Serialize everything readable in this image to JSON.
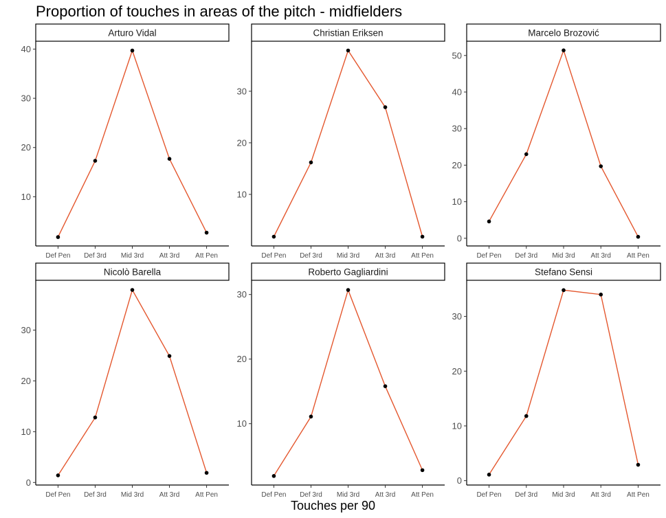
{
  "title": "Proportion of touches in areas of the pitch - midfielders",
  "xlabel": "Touches per 90",
  "colors": {
    "line": "#e4572e",
    "point": "#000000",
    "axis": "#000000",
    "strip_fill": "#ffffff"
  },
  "chart_data": [
    {
      "type": "line",
      "title": "Arturo Vidal",
      "categories": [
        "Def Pen",
        "Def 3rd",
        "Mid 3rd",
        "Att 3rd",
        "Att Pen"
      ],
      "values": [
        1.8,
        17.3,
        39.7,
        17.7,
        2.7
      ],
      "ylim": [
        0,
        41.6
      ],
      "yticks": [
        10,
        20,
        30,
        40
      ],
      "grid": false
    },
    {
      "type": "line",
      "title": "Christian Eriksen",
      "categories": [
        "Def Pen",
        "Def 3rd",
        "Mid 3rd",
        "Att 3rd",
        "Att Pen"
      ],
      "values": [
        1.8,
        16.2,
        37.9,
        26.9,
        1.8
      ],
      "ylim": [
        0,
        39.7
      ],
      "yticks": [
        10,
        20,
        30
      ],
      "grid": false
    },
    {
      "type": "line",
      "title": "Marcelo Brozović",
      "categories": [
        "Def Pen",
        "Def 3rd",
        "Mid 3rd",
        "Att 3rd",
        "Att Pen"
      ],
      "values": [
        4.6,
        23.0,
        51.4,
        19.7,
        0.4
      ],
      "ylim": [
        -2.1,
        53.9
      ],
      "yticks": [
        0,
        10,
        20,
        30,
        40,
        50
      ],
      "grid": false
    },
    {
      "type": "line",
      "title": "Nicolò Barella",
      "categories": [
        "Def Pen",
        "Def 3rd",
        "Mid 3rd",
        "Att 3rd",
        "Att Pen"
      ],
      "values": [
        1.4,
        12.8,
        37.9,
        24.9,
        1.9
      ],
      "ylim": [
        -0.5,
        39.8
      ],
      "yticks": [
        0,
        10,
        20,
        30
      ],
      "grid": false
    },
    {
      "type": "line",
      "title": "Roberto Gagliardini",
      "categories": [
        "Def Pen",
        "Def 3rd",
        "Mid 3rd",
        "Att 3rd",
        "Att Pen"
      ],
      "values": [
        1.9,
        11.1,
        30.7,
        15.8,
        2.8
      ],
      "ylim": [
        0.5,
        32.2
      ],
      "yticks": [
        10,
        20,
        30
      ],
      "grid": false
    },
    {
      "type": "line",
      "title": "Stefano Sensi",
      "categories": [
        "Def Pen",
        "Def 3rd",
        "Mid 3rd",
        "Att 3rd",
        "Att Pen"
      ],
      "values": [
        1.1,
        11.8,
        34.8,
        34.0,
        2.9
      ],
      "ylim": [
        -0.8,
        36.6
      ],
      "yticks": [
        0,
        10,
        20,
        30
      ],
      "grid": false
    }
  ]
}
